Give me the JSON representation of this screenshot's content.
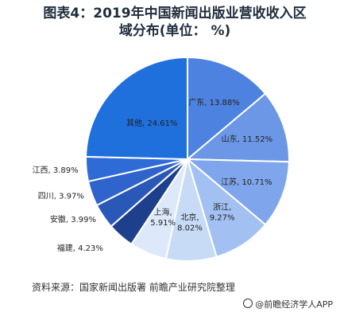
{
  "title_line1": "图表4：2019年中国新闻出版业营收收入区",
  "title_line2": "域分布(单位： %)",
  "source": "资料来源：国家新闻出版署 前瞻产业研究院整理",
  "watermark": "@前瞻经济学人APP",
  "chart_data": {
    "type": "pie",
    "title": "图表4：2019年中国新闻出版业营收收入区域分布(单位： %)",
    "categories": [
      "广东",
      "山东",
      "江苏",
      "浙江",
      "北京",
      "上海",
      "福建",
      "安徽",
      "四川",
      "江西",
      "其他"
    ],
    "values": [
      13.88,
      11.52,
      10.71,
      9.27,
      8.02,
      5.91,
      4.23,
      3.99,
      3.97,
      3.89,
      24.61
    ],
    "labels": [
      "广东, 13.88%",
      "山东, 11.52%",
      "江苏, 10.71%",
      "浙江, 9.27%",
      "北京, 8.02%",
      "上海, 5.91%",
      "福建, 4.23%",
      "安徽, 3.99%",
      "四川, 3.97%",
      "江西, 3.89%",
      "其他, 24.61%"
    ],
    "colors": [
      "#4e82e0",
      "#6b97e6",
      "#7fa6ec",
      "#a2c0f2",
      "#c7dbf7",
      "#dde9fb",
      "#1d3f8c",
      "#2a58b8",
      "#2f64cc",
      "#2f6bd6",
      "#1f6fdc"
    ]
  }
}
